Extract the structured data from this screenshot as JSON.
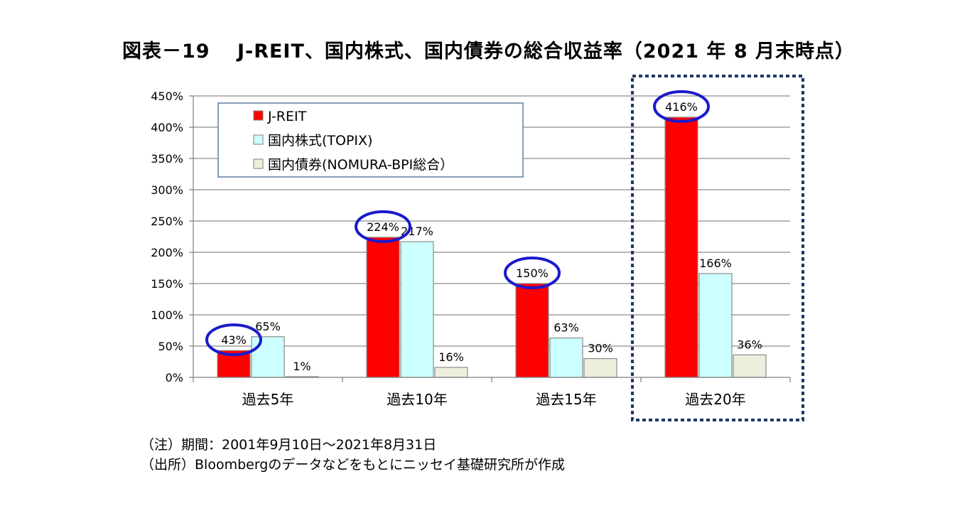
{
  "title": "図表－19　 J-REIT、国内株式、国内債券の総合収益率（2021 年 8 月末時点）",
  "notes": [
    "（注）期間：2001年9月10日～2021年8月31日",
    "（出所）Bloombergのデータなどをもとにニッセイ基礎研究所が作成"
  ],
  "chart_data": {
    "type": "bar",
    "categories": [
      "過去5年",
      "過去10年",
      "過去15年",
      "過去20年"
    ],
    "series": [
      {
        "name": "J-REIT",
        "values": [
          43,
          224,
          150,
          416
        ],
        "color": "#ff0000"
      },
      {
        "name": "国内株式(TOPIX)",
        "values": [
          65,
          217,
          63,
          166
        ],
        "color": "#ccffff"
      },
      {
        "name": "国内債券(NOMURA-BPI総合）",
        "values": [
          1,
          16,
          30,
          36
        ],
        "color": "#eeeedd"
      }
    ],
    "data_labels": [
      [
        "43%",
        "224%",
        "150%",
        "416%"
      ],
      [
        "65%",
        "217%",
        "63%",
        "166%"
      ],
      [
        "1%",
        "16%",
        "30%",
        "36%"
      ]
    ],
    "y_ticks": [
      "0%",
      "50%",
      "100%",
      "150%",
      "200%",
      "250%",
      "300%",
      "350%",
      "400%",
      "450%"
    ],
    "ylim": [
      0,
      450
    ],
    "grid": true,
    "legend_position": "top-left",
    "highlighted_series": "J-REIT",
    "highlight_ring_color": "#1a1acc",
    "highlighted_category": "過去20年",
    "highlight_box_color": "#1f3864"
  }
}
